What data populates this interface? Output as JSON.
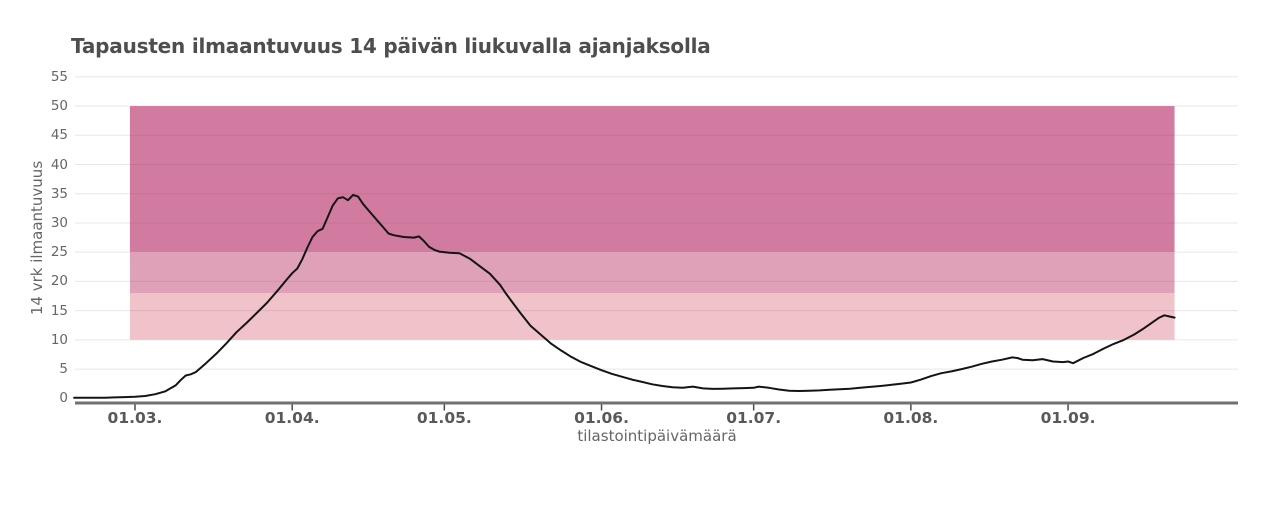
{
  "page": {
    "background": "#ffffff"
  },
  "chart_data": {
    "type": "line",
    "title": "Tapausten ilmaantuvuus 14 päivän liukuvalla ajanjaksolla",
    "xlabel": "tilastointipäivämäärä",
    "ylabel": "14 vrk ilmaantuvuus",
    "legend": "none",
    "grid": true,
    "ylim": [
      0,
      57
    ],
    "y_ticks": [
      0,
      5,
      10,
      15,
      20,
      25,
      30,
      35,
      40,
      45,
      50,
      55
    ],
    "x_tick_labels": [
      "01.03.",
      "01.04.",
      "01.05.",
      "01.06.",
      "01.07.",
      "01.08.",
      "01.09."
    ],
    "colors": {
      "title_text": "#4e4e50",
      "axis_text": "#666666",
      "x_tick_text": "#595959",
      "gridline": "#e7e7e7",
      "axis_line": "#707070",
      "line": "#141414",
      "band_low": "#efc3c9",
      "band_mid": "#dfa1b8",
      "band_high": "#d27ba1"
    },
    "bands": [
      {
        "label": "10-18",
        "from": 10,
        "to": 18,
        "x_from": "29.02.",
        "x_to": "22.09.",
        "color_key": "band_low"
      },
      {
        "label": "18-25",
        "from": 18,
        "to": 25,
        "x_from": "29.02.",
        "x_to": "22.09.",
        "color_key": "band_mid"
      },
      {
        "label": "25-50",
        "from": 25,
        "to": 50,
        "x_from": "29.02.",
        "x_to": "22.09.",
        "color_key": "band_high"
      }
    ],
    "series": [
      {
        "name": "14 vrk ilmaantuvuus",
        "points": [
          [
            "18.02.",
            0.1
          ],
          [
            "20.02.",
            0.1
          ],
          [
            "22.02.",
            0.1
          ],
          [
            "24.02.",
            0.1
          ],
          [
            "26.02.",
            0.15
          ],
          [
            "28.02.",
            0.2
          ],
          [
            "01.03.",
            0.25
          ],
          [
            "03.03.",
            0.4
          ],
          [
            "05.03.",
            0.7
          ],
          [
            "07.03.",
            1.2
          ],
          [
            "09.03.",
            2.2
          ],
          [
            "10.03.",
            3.1
          ],
          [
            "11.03.",
            3.9
          ],
          [
            "12.03.",
            4.1
          ],
          [
            "13.03.",
            4.5
          ],
          [
            "15.03.",
            6.0
          ],
          [
            "17.03.",
            7.6
          ],
          [
            "19.03.",
            9.4
          ],
          [
            "21.03.",
            11.3
          ],
          [
            "23.03.",
            12.9
          ],
          [
            "25.03.",
            14.6
          ],
          [
            "27.03.",
            16.3
          ],
          [
            "29.03.",
            18.3
          ],
          [
            "31.03.",
            20.4
          ],
          [
            "01.04.",
            21.4
          ],
          [
            "02.04.",
            22.2
          ],
          [
            "03.04.",
            23.8
          ],
          [
            "04.04.",
            25.8
          ],
          [
            "05.04.",
            27.6
          ],
          [
            "06.04.",
            28.6
          ],
          [
            "07.04.",
            29.0
          ],
          [
            "08.04.",
            31.0
          ],
          [
            "09.04.",
            33.0
          ],
          [
            "10.04.",
            34.2
          ],
          [
            "11.04.",
            34.4
          ],
          [
            "12.04.",
            33.9
          ],
          [
            "13.04.",
            34.8
          ],
          [
            "14.04.",
            34.5
          ],
          [
            "15.04.",
            33.2
          ],
          [
            "16.04.",
            32.2
          ],
          [
            "17.04.",
            31.2
          ],
          [
            "18.04.",
            30.2
          ],
          [
            "19.04.",
            29.2
          ],
          [
            "20.04.",
            28.2
          ],
          [
            "21.04.",
            27.9
          ],
          [
            "23.04.",
            27.6
          ],
          [
            "25.04.",
            27.5
          ],
          [
            "26.04.",
            27.7
          ],
          [
            "27.04.",
            26.9
          ],
          [
            "28.04.",
            25.9
          ],
          [
            "29.04.",
            25.4
          ],
          [
            "30.04.",
            25.1
          ],
          [
            "02.05.",
            24.9
          ],
          [
            "04.05.",
            24.8
          ],
          [
            "06.05.",
            23.9
          ],
          [
            "08.05.",
            22.6
          ],
          [
            "10.05.",
            21.3
          ],
          [
            "12.05.",
            19.4
          ],
          [
            "13.05.",
            18.1
          ],
          [
            "14.05.",
            16.9
          ],
          [
            "16.05.",
            14.6
          ],
          [
            "18.05.",
            12.4
          ],
          [
            "20.05.",
            10.9
          ],
          [
            "22.05.",
            9.4
          ],
          [
            "24.05.",
            8.2
          ],
          [
            "26.05.",
            7.1
          ],
          [
            "28.05.",
            6.2
          ],
          [
            "30.05.",
            5.5
          ],
          [
            "01.06.",
            4.8
          ],
          [
            "03.06.",
            4.2
          ],
          [
            "05.06.",
            3.7
          ],
          [
            "07.06.",
            3.2
          ],
          [
            "09.06.",
            2.8
          ],
          [
            "11.06.",
            2.4
          ],
          [
            "13.06.",
            2.1
          ],
          [
            "15.06.",
            1.9
          ],
          [
            "17.06.",
            1.8
          ],
          [
            "19.06.",
            2.0
          ],
          [
            "21.06.",
            1.7
          ],
          [
            "23.06.",
            1.6
          ],
          [
            "25.06.",
            1.65
          ],
          [
            "27.06.",
            1.7
          ],
          [
            "29.06.",
            1.75
          ],
          [
            "01.07.",
            1.8
          ],
          [
            "02.07.",
            2.0
          ],
          [
            "04.07.",
            1.8
          ],
          [
            "06.07.",
            1.5
          ],
          [
            "08.07.",
            1.3
          ],
          [
            "10.07.",
            1.25
          ],
          [
            "12.07.",
            1.3
          ],
          [
            "14.07.",
            1.35
          ],
          [
            "16.07.",
            1.45
          ],
          [
            "18.07.",
            1.55
          ],
          [
            "20.07.",
            1.65
          ],
          [
            "22.07.",
            1.8
          ],
          [
            "24.07.",
            1.95
          ],
          [
            "26.07.",
            2.1
          ],
          [
            "28.07.",
            2.3
          ],
          [
            "30.07.",
            2.5
          ],
          [
            "01.08.",
            2.7
          ],
          [
            "03.08.",
            3.2
          ],
          [
            "05.08.",
            3.8
          ],
          [
            "07.08.",
            4.3
          ],
          [
            "09.08.",
            4.6
          ],
          [
            "11.08.",
            5.0
          ],
          [
            "13.08.",
            5.4
          ],
          [
            "15.08.",
            5.9
          ],
          [
            "17.08.",
            6.3
          ],
          [
            "19.08.",
            6.6
          ],
          [
            "21.08.",
            7.0
          ],
          [
            "22.08.",
            6.9
          ],
          [
            "23.08.",
            6.6
          ],
          [
            "25.08.",
            6.5
          ],
          [
            "27.08.",
            6.7
          ],
          [
            "29.08.",
            6.3
          ],
          [
            "31.08.",
            6.2
          ],
          [
            "01.09.",
            6.3
          ],
          [
            "02.09.",
            6.0
          ],
          [
            "04.09.",
            6.9
          ],
          [
            "06.09.",
            7.6
          ],
          [
            "08.09.",
            8.5
          ],
          [
            "10.09.",
            9.3
          ],
          [
            "12.09.",
            10.0
          ],
          [
            "14.09.",
            10.9
          ],
          [
            "16.09.",
            12.0
          ],
          [
            "18.09.",
            13.2
          ],
          [
            "19.09.",
            13.8
          ],
          [
            "20.09.",
            14.2
          ],
          [
            "21.09.",
            14.0
          ],
          [
            "22.09.",
            13.8
          ]
        ]
      }
    ]
  }
}
